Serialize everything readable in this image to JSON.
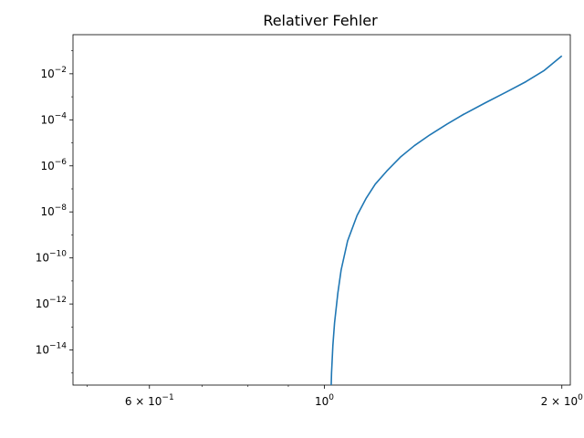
{
  "chart_data": {
    "type": "line",
    "title": "Relativer Fehler",
    "xlabel": "",
    "ylabel": "",
    "xscale": "log",
    "yscale": "log",
    "xlim": [
      0.48,
      2.05
    ],
    "ylim": [
      3e-16,
      0.5
    ],
    "grid": false,
    "colors": {
      "line": "#1f77b4",
      "axes": "#000000"
    },
    "xticks_major": [
      {
        "value": 0.6,
        "mantissa": "6 × 10",
        "exp": "−1"
      },
      {
        "value": 1.0,
        "mantissa": "10",
        "exp": "0"
      },
      {
        "value": 2.0,
        "mantissa": "2 × 10",
        "exp": "0"
      }
    ],
    "xticks_minor": [
      0.5,
      0.7,
      0.8,
      0.9
    ],
    "yticks_major": [
      {
        "value": 1e-14,
        "mantissa": "10",
        "exp": "−14"
      },
      {
        "value": 1e-12,
        "mantissa": "10",
        "exp": "−12"
      },
      {
        "value": 1e-10,
        "mantissa": "10",
        "exp": "−10"
      },
      {
        "value": 1e-08,
        "mantissa": "10",
        "exp": "−8"
      },
      {
        "value": 1e-06,
        "mantissa": "10",
        "exp": "−6"
      },
      {
        "value": 0.0001,
        "mantissa": "10",
        "exp": "−4"
      },
      {
        "value": 0.01,
        "mantissa": "10",
        "exp": "−2"
      }
    ],
    "series": [
      {
        "x": [
          1.02,
          1.021,
          1.025,
          1.03,
          1.04,
          1.05,
          1.07,
          1.1,
          1.13,
          1.16,
          1.2,
          1.25,
          1.3,
          1.36,
          1.43,
          1.5,
          1.6,
          1.7,
          1.8,
          1.9,
          2.0
        ],
        "y": [
          3e-16,
          1e-15,
          1.6e-14,
          1.5e-13,
          3e-12,
          3e-11,
          5.5e-10,
          7e-09,
          4e-08,
          1.6e-07,
          6e-07,
          2.5e-06,
          7.5e-06,
          2.2e-05,
          6.5e-05,
          0.00017,
          0.00055,
          0.0016,
          0.0045,
          0.014,
          0.06
        ]
      }
    ]
  }
}
